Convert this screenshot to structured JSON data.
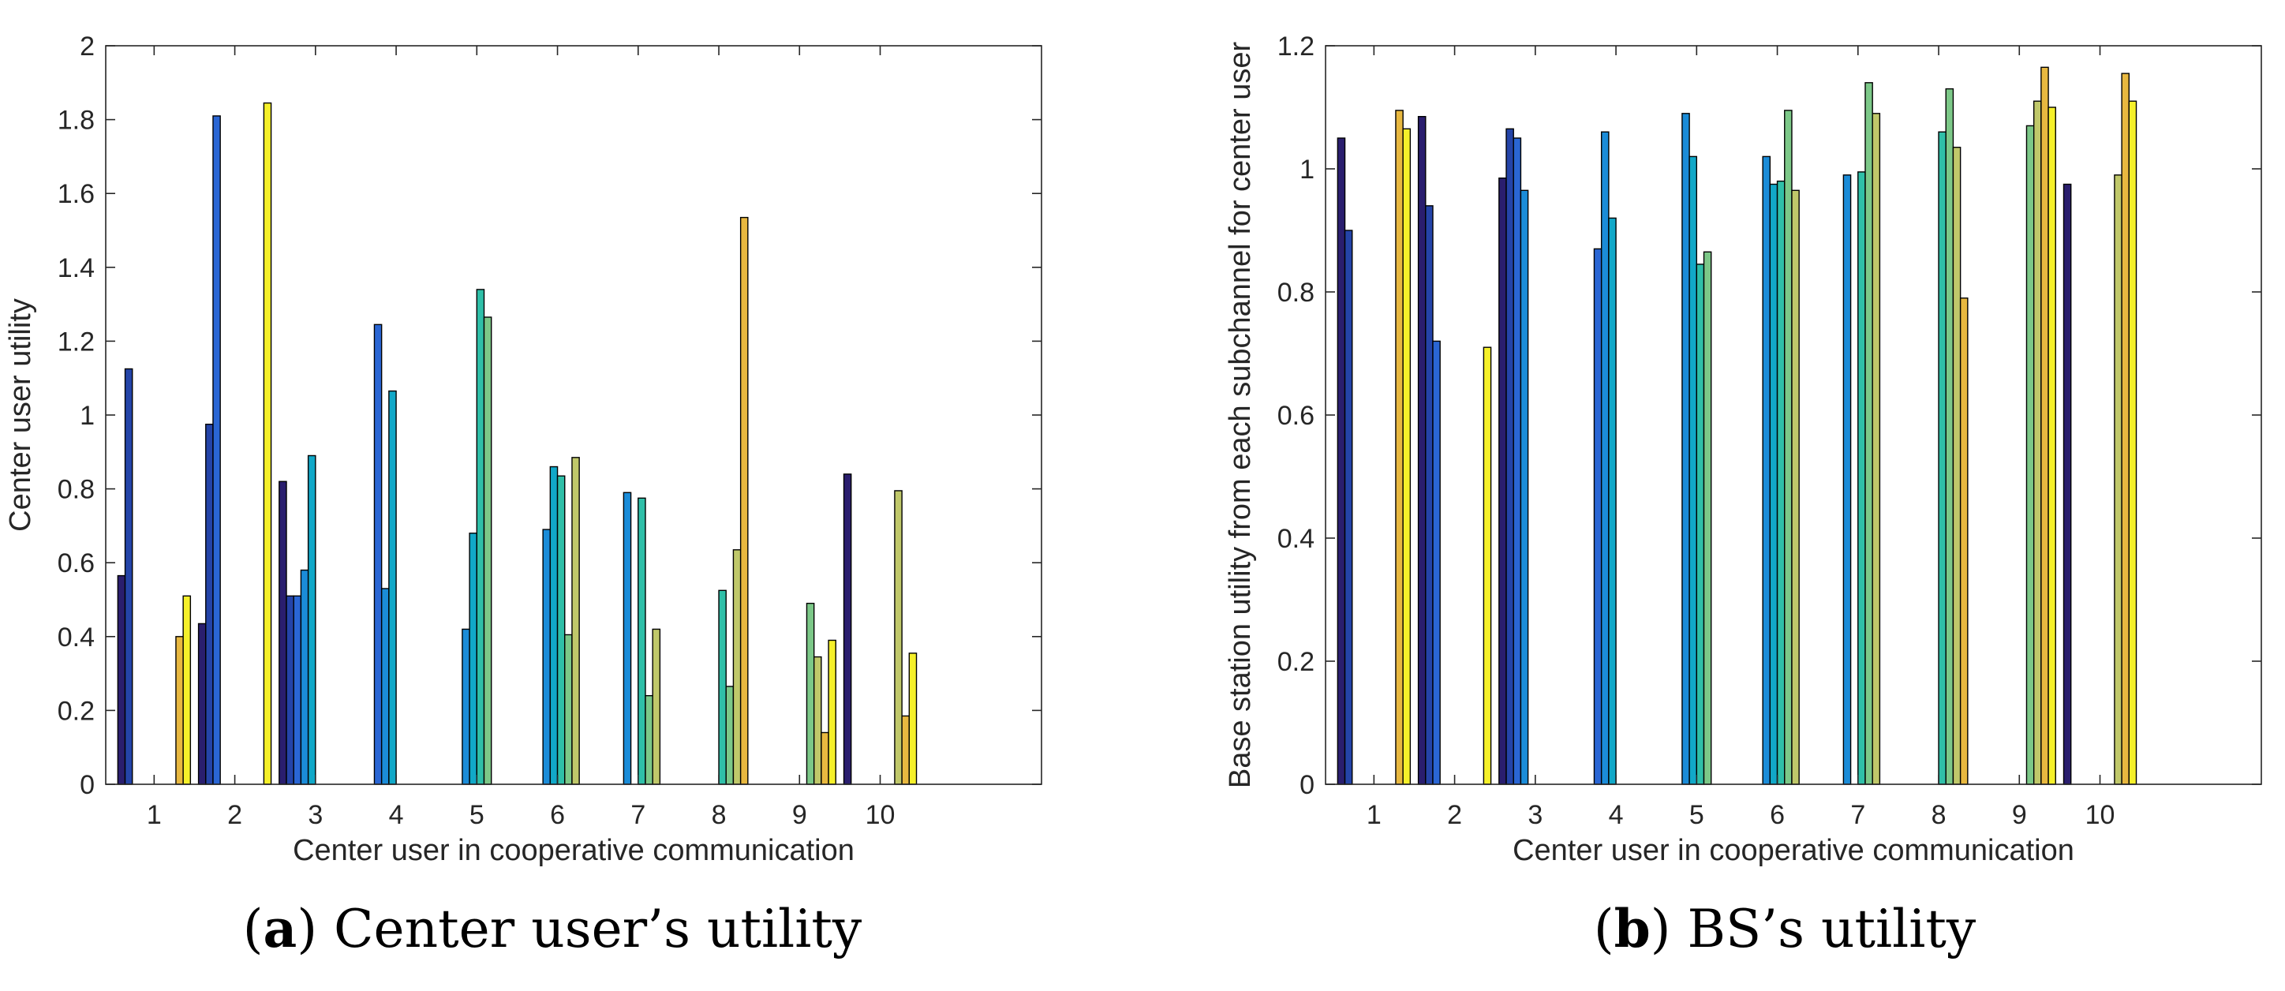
{
  "chart_data": [
    {
      "type": "bar",
      "panel": "a",
      "caption_letter": "a",
      "caption_text": "Center user’s utility",
      "xlabel": "Center user in cooperative communication",
      "ylabel": "Center user utility",
      "ylim": [
        0,
        2
      ],
      "yticks": [
        "0",
        "0.2",
        "0.4",
        "0.6",
        "0.8",
        "1",
        "1.2",
        "1.4",
        "1.6",
        "1.8",
        "2"
      ],
      "xlim": [
        0.4,
        12.0
      ],
      "categories": [
        "1",
        "2",
        "3",
        "4",
        "5",
        "6",
        "7",
        "8",
        "9",
        "10"
      ],
      "group_width": 0.9,
      "num_series": 10,
      "series_colors": [
        "#2a1e6e",
        "#2444a8",
        "#2a66d4",
        "#1b8cd8",
        "#11a8c8",
        "#2fbfa8",
        "#7cc888",
        "#c0c86a",
        "#e8b840",
        "#f5f02a"
      ],
      "values": [
        [
          0.565,
          1.125,
          0,
          0,
          0,
          0,
          0,
          0,
          0.4,
          0.51
        ],
        [
          0.435,
          0.975,
          1.81,
          0,
          0,
          0,
          0,
          0,
          0,
          1.845
        ],
        [
          0.82,
          0.51,
          0.51,
          0.58,
          0.89,
          0,
          0,
          0,
          0,
          0
        ],
        [
          0,
          0,
          1.245,
          0.53,
          1.065,
          0,
          0,
          0,
          0,
          0
        ],
        [
          0,
          0,
          0,
          0.42,
          0.68,
          1.34,
          1.265,
          0,
          0,
          0
        ],
        [
          0,
          0,
          0,
          0.69,
          0.86,
          0.835,
          0.405,
          0.885,
          0,
          0
        ],
        [
          0,
          0,
          0,
          0.79,
          0,
          0.775,
          0.24,
          0.42,
          0,
          0
        ],
        [
          0,
          0,
          0,
          0,
          0,
          0.525,
          0.265,
          0.635,
          1.535,
          0
        ],
        [
          0,
          0,
          0,
          0,
          0,
          0,
          0.49,
          0.345,
          0.14,
          0.39
        ],
        [
          0.84,
          0,
          0,
          0,
          0,
          0,
          0,
          0.795,
          0.185,
          0.355
        ]
      ]
    },
    {
      "type": "bar",
      "panel": "b",
      "caption_letter": "b",
      "caption_text": "BS’s utility",
      "xlabel": "Center user in cooperative communication",
      "ylabel": "Base station utility from each subchannel for center user",
      "ylim": [
        0,
        1.2
      ],
      "yticks": [
        "0",
        "0.2",
        "0.4",
        "0.6",
        "0.8",
        "1",
        "1.2"
      ],
      "xlim": [
        0.4,
        12.0
      ],
      "categories": [
        "1",
        "2",
        "3",
        "4",
        "5",
        "6",
        "7",
        "8",
        "9",
        "10"
      ],
      "group_width": 0.9,
      "num_series": 10,
      "series_colors": [
        "#2a1e6e",
        "#2444a8",
        "#2a66d4",
        "#1b8cd8",
        "#11a8c8",
        "#2fbfa8",
        "#7cc888",
        "#c0c86a",
        "#e8b840",
        "#f5f02a"
      ],
      "values": [
        [
          1.05,
          0.9,
          0,
          0,
          0,
          0,
          0,
          0,
          1.095,
          1.065
        ],
        [
          1.085,
          0.94,
          0.72,
          0,
          0,
          0,
          0,
          0,
          0,
          0.71
        ],
        [
          0.985,
          1.065,
          1.05,
          0.965,
          0,
          0,
          0,
          0,
          0,
          0
        ],
        [
          0,
          0,
          0.87,
          1.06,
          0.92,
          0,
          0,
          0,
          0,
          0
        ],
        [
          0,
          0,
          0,
          1.09,
          1.02,
          0.845,
          0.865,
          0,
          0,
          0
        ],
        [
          0,
          0,
          0,
          1.02,
          0.975,
          0.98,
          1.095,
          0.965,
          0,
          0
        ],
        [
          0,
          0,
          0,
          0.99,
          0,
          0.995,
          1.14,
          1.09,
          0,
          0
        ],
        [
          0,
          0,
          0,
          0,
          0,
          1.06,
          1.13,
          1.035,
          0.79,
          0
        ],
        [
          0,
          0,
          0,
          0,
          0,
          0,
          1.07,
          1.11,
          1.165,
          1.1
        ],
        [
          0.975,
          0,
          0,
          0,
          0,
          0,
          0,
          0.99,
          1.155,
          1.11
        ]
      ]
    }
  ]
}
